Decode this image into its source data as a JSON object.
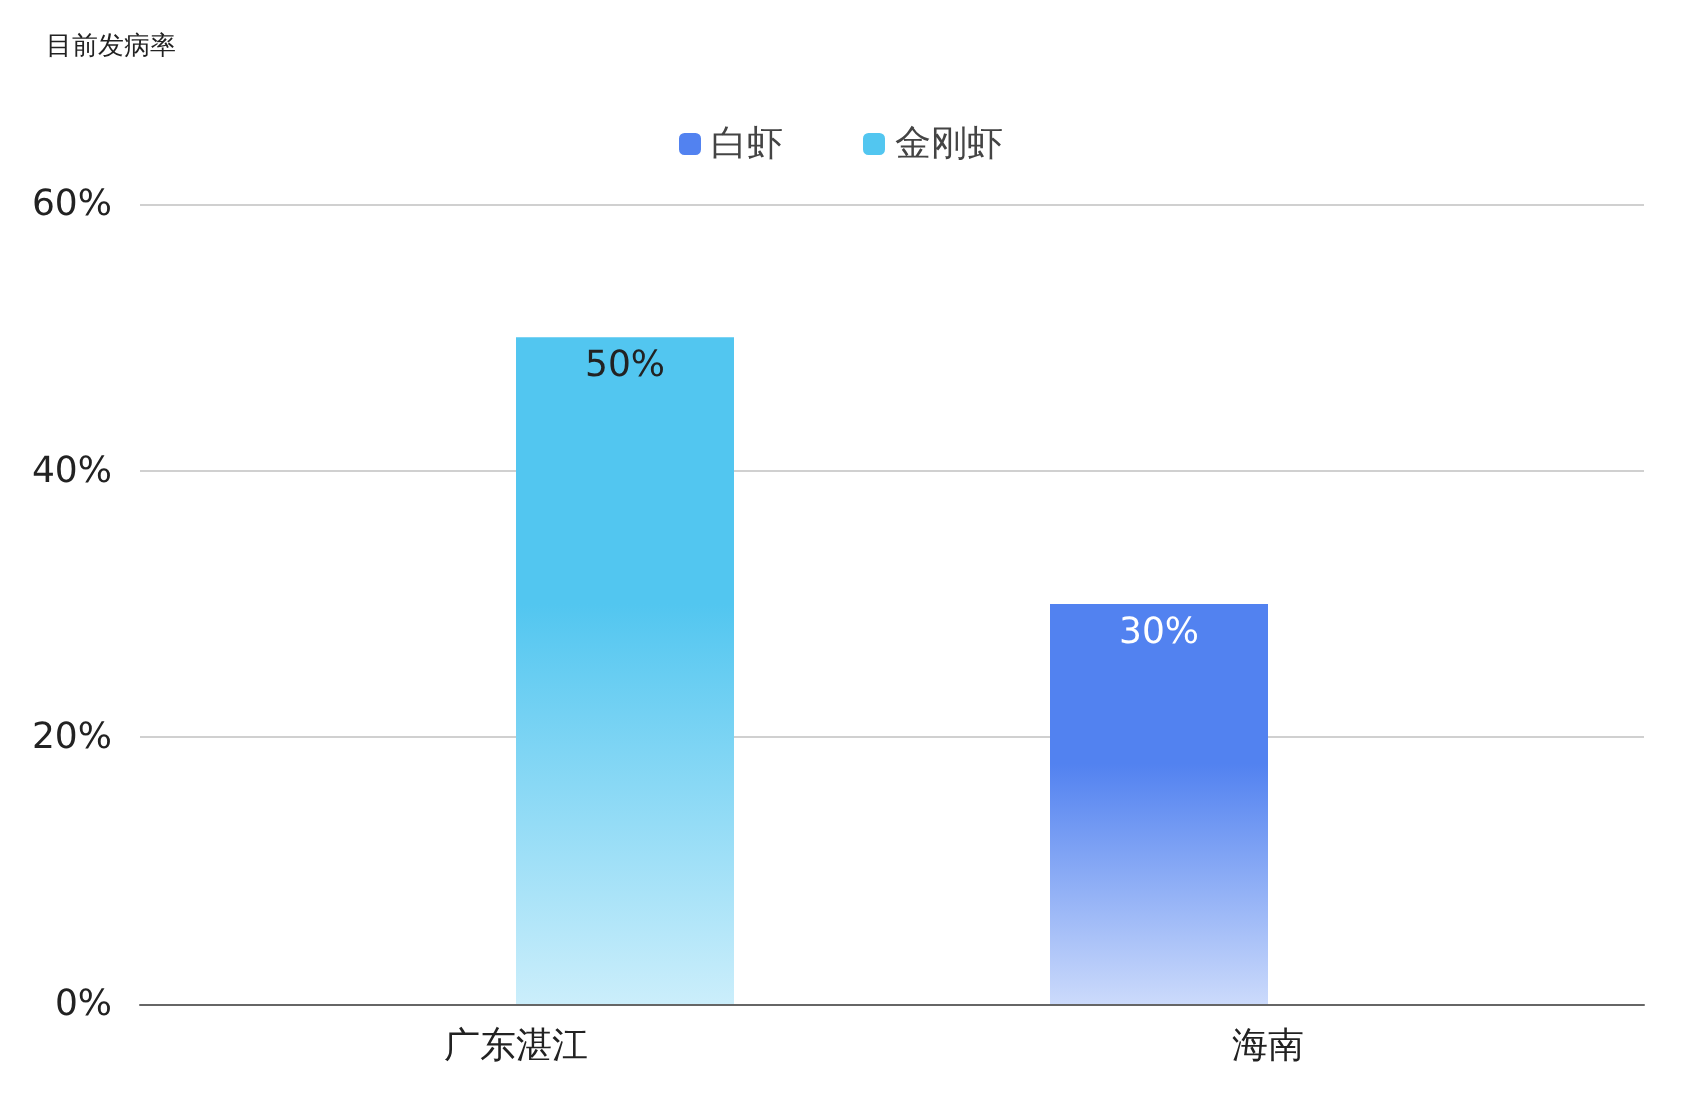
{
  "chart_data": {
    "type": "bar",
    "title": "目前发病率",
    "categories": [
      "广东湛江",
      "海南"
    ],
    "series": [
      {
        "name": "白虾",
        "color": "#5282f0",
        "values": [
          null,
          30
        ],
        "value_labels": [
          null,
          "30%"
        ]
      },
      {
        "name": "金刚虾",
        "color": "#52c6f0",
        "values": [
          50,
          null
        ],
        "value_labels": [
          "50%",
          null
        ]
      }
    ],
    "ylim": [
      0,
      60
    ],
    "yticks": [
      {
        "value": 0,
        "label": "0%"
      },
      {
        "value": 20,
        "label": "20%"
      },
      {
        "value": 40,
        "label": "40%"
      },
      {
        "value": 60,
        "label": "60%"
      }
    ],
    "grid": "y",
    "legend": "top"
  }
}
